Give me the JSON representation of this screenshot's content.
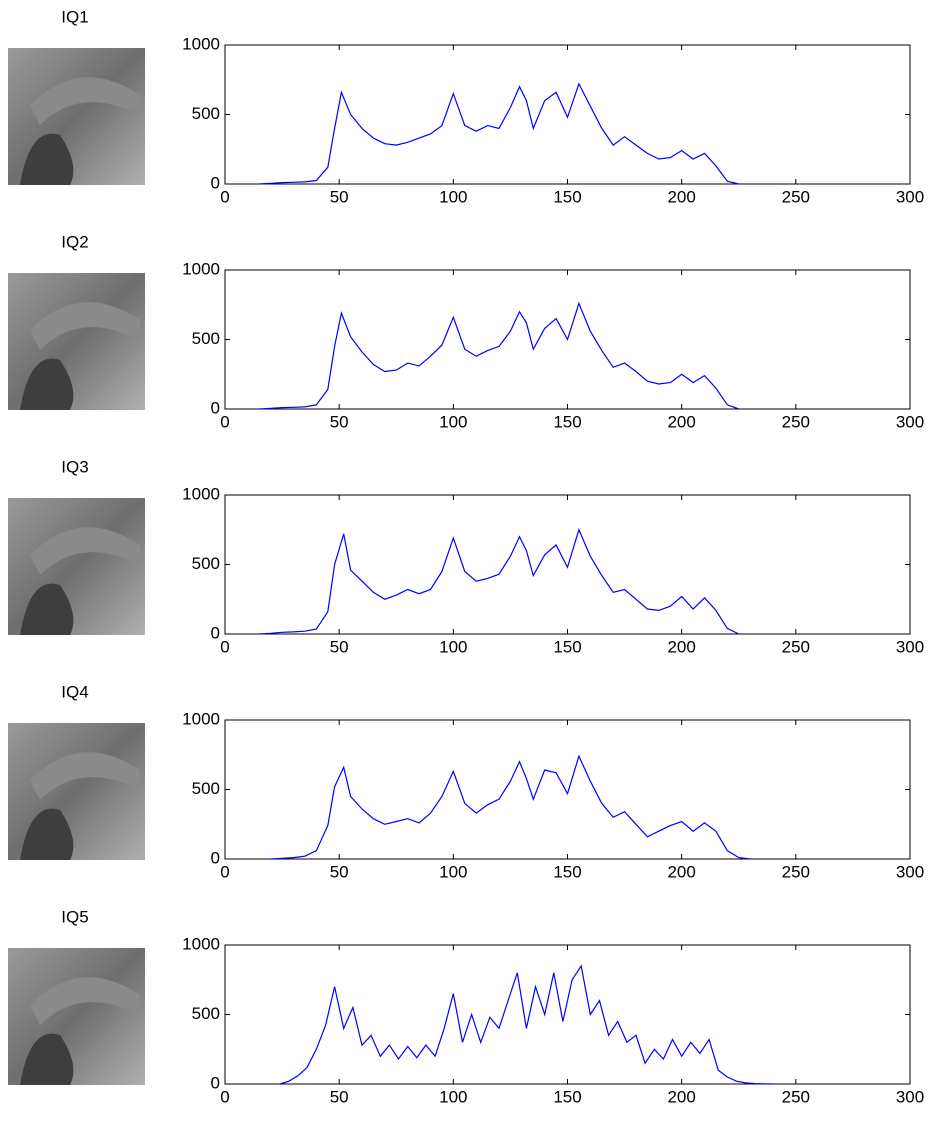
{
  "chart_data": [
    {
      "type": "line",
      "title": "IQ1",
      "color": "#0000ff",
      "x": [
        15,
        20,
        25,
        30,
        35,
        40,
        45,
        48,
        51,
        55,
        60,
        65,
        70,
        75,
        80,
        85,
        90,
        95,
        100,
        105,
        110,
        115,
        120,
        125,
        129,
        132,
        135,
        140,
        145,
        150,
        155,
        160,
        165,
        170,
        175,
        180,
        185,
        190,
        195,
        200,
        205,
        210,
        215,
        220,
        225
      ],
      "values": [
        0,
        5,
        10,
        12,
        15,
        25,
        120,
        400,
        660,
        500,
        400,
        330,
        290,
        280,
        300,
        330,
        360,
        420,
        650,
        420,
        380,
        420,
        400,
        550,
        700,
        600,
        400,
        600,
        660,
        480,
        720,
        560,
        400,
        280,
        340,
        280,
        220,
        180,
        190,
        240,
        180,
        220,
        130,
        20,
        0
      ],
      "xlim": [
        0,
        300
      ],
      "ylim": [
        0,
        1000
      ],
      "xticks": [
        0,
        50,
        100,
        150,
        200,
        250,
        300
      ],
      "yticks": [
        0,
        500,
        1000
      ]
    },
    {
      "type": "line",
      "title": "IQ2",
      "color": "#0000ff",
      "x": [
        15,
        20,
        25,
        30,
        35,
        40,
        45,
        48,
        51,
        55,
        60,
        65,
        70,
        75,
        80,
        85,
        90,
        95,
        100,
        105,
        110,
        115,
        120,
        125,
        129,
        132,
        135,
        140,
        145,
        150,
        155,
        160,
        165,
        170,
        175,
        180,
        185,
        190,
        195,
        200,
        205,
        210,
        215,
        220,
        225
      ],
      "values": [
        0,
        5,
        10,
        12,
        15,
        30,
        140,
        450,
        690,
        520,
        410,
        320,
        270,
        280,
        330,
        310,
        380,
        460,
        660,
        430,
        380,
        420,
        450,
        560,
        700,
        620,
        430,
        580,
        650,
        500,
        760,
        560,
        420,
        300,
        330,
        270,
        200,
        180,
        190,
        250,
        190,
        240,
        150,
        30,
        0
      ],
      "xlim": [
        0,
        300
      ],
      "ylim": [
        0,
        1000
      ],
      "xticks": [
        0,
        50,
        100,
        150,
        200,
        250,
        300
      ],
      "yticks": [
        0,
        500,
        1000
      ]
    },
    {
      "type": "line",
      "title": "IQ3",
      "color": "#0000ff",
      "x": [
        15,
        20,
        25,
        30,
        35,
        40,
        45,
        48,
        52,
        55,
        60,
        65,
        70,
        75,
        80,
        85,
        90,
        95,
        100,
        105,
        110,
        115,
        120,
        125,
        129,
        132,
        135,
        140,
        145,
        150,
        155,
        160,
        165,
        170,
        175,
        180,
        185,
        190,
        195,
        200,
        205,
        210,
        215,
        220,
        225
      ],
      "values": [
        0,
        5,
        12,
        15,
        20,
        35,
        160,
        500,
        720,
        460,
        380,
        300,
        250,
        280,
        320,
        290,
        320,
        450,
        690,
        450,
        380,
        400,
        430,
        560,
        700,
        600,
        420,
        570,
        640,
        480,
        750,
        560,
        420,
        300,
        320,
        250,
        180,
        170,
        200,
        270,
        180,
        260,
        170,
        40,
        0
      ],
      "xlim": [
        0,
        300
      ],
      "ylim": [
        0,
        1000
      ],
      "xticks": [
        0,
        50,
        100,
        150,
        200,
        250,
        300
      ],
      "yticks": [
        0,
        500,
        1000
      ]
    },
    {
      "type": "line",
      "title": "IQ4",
      "color": "#0000ff",
      "x": [
        20,
        25,
        30,
        35,
        40,
        45,
        48,
        52,
        55,
        60,
        65,
        70,
        75,
        80,
        85,
        90,
        95,
        100,
        105,
        110,
        115,
        120,
        125,
        129,
        132,
        135,
        140,
        145,
        150,
        155,
        160,
        165,
        170,
        175,
        180,
        185,
        190,
        195,
        200,
        205,
        210,
        215,
        220,
        225,
        230
      ],
      "values": [
        0,
        5,
        10,
        20,
        60,
        240,
        520,
        660,
        450,
        360,
        290,
        250,
        270,
        290,
        260,
        330,
        450,
        630,
        400,
        330,
        390,
        430,
        560,
        700,
        580,
        430,
        640,
        620,
        470,
        740,
        560,
        400,
        300,
        340,
        250,
        160,
        200,
        240,
        270,
        200,
        260,
        200,
        60,
        10,
        0
      ],
      "xlim": [
        0,
        300
      ],
      "ylim": [
        0,
        1000
      ],
      "xticks": [
        0,
        50,
        100,
        150,
        200,
        250,
        300
      ],
      "yticks": [
        0,
        500,
        1000
      ]
    },
    {
      "type": "line",
      "title": "IQ5",
      "color": "#0000ff",
      "x": [
        24,
        28,
        32,
        36,
        40,
        44,
        48,
        52,
        56,
        60,
        64,
        68,
        72,
        76,
        80,
        84,
        88,
        92,
        96,
        100,
        104,
        108,
        112,
        116,
        120,
        124,
        128,
        132,
        136,
        140,
        144,
        148,
        152,
        156,
        160,
        164,
        168,
        172,
        176,
        180,
        184,
        188,
        192,
        196,
        200,
        204,
        208,
        212,
        216,
        220,
        224,
        228,
        232,
        236,
        240
      ],
      "values": [
        0,
        20,
        60,
        120,
        250,
        420,
        700,
        400,
        550,
        280,
        350,
        200,
        280,
        180,
        270,
        190,
        280,
        200,
        400,
        650,
        300,
        500,
        300,
        480,
        400,
        600,
        800,
        400,
        700,
        500,
        800,
        450,
        750,
        850,
        500,
        600,
        350,
        450,
        300,
        350,
        150,
        250,
        180,
        320,
        200,
        300,
        220,
        320,
        100,
        50,
        20,
        8,
        3,
        1,
        0
      ],
      "xlim": [
        0,
        300
      ],
      "ylim": [
        0,
        1000
      ],
      "xticks": [
        0,
        50,
        100,
        150,
        200,
        250,
        300
      ],
      "yticks": [
        0,
        500,
        1000
      ]
    }
  ]
}
